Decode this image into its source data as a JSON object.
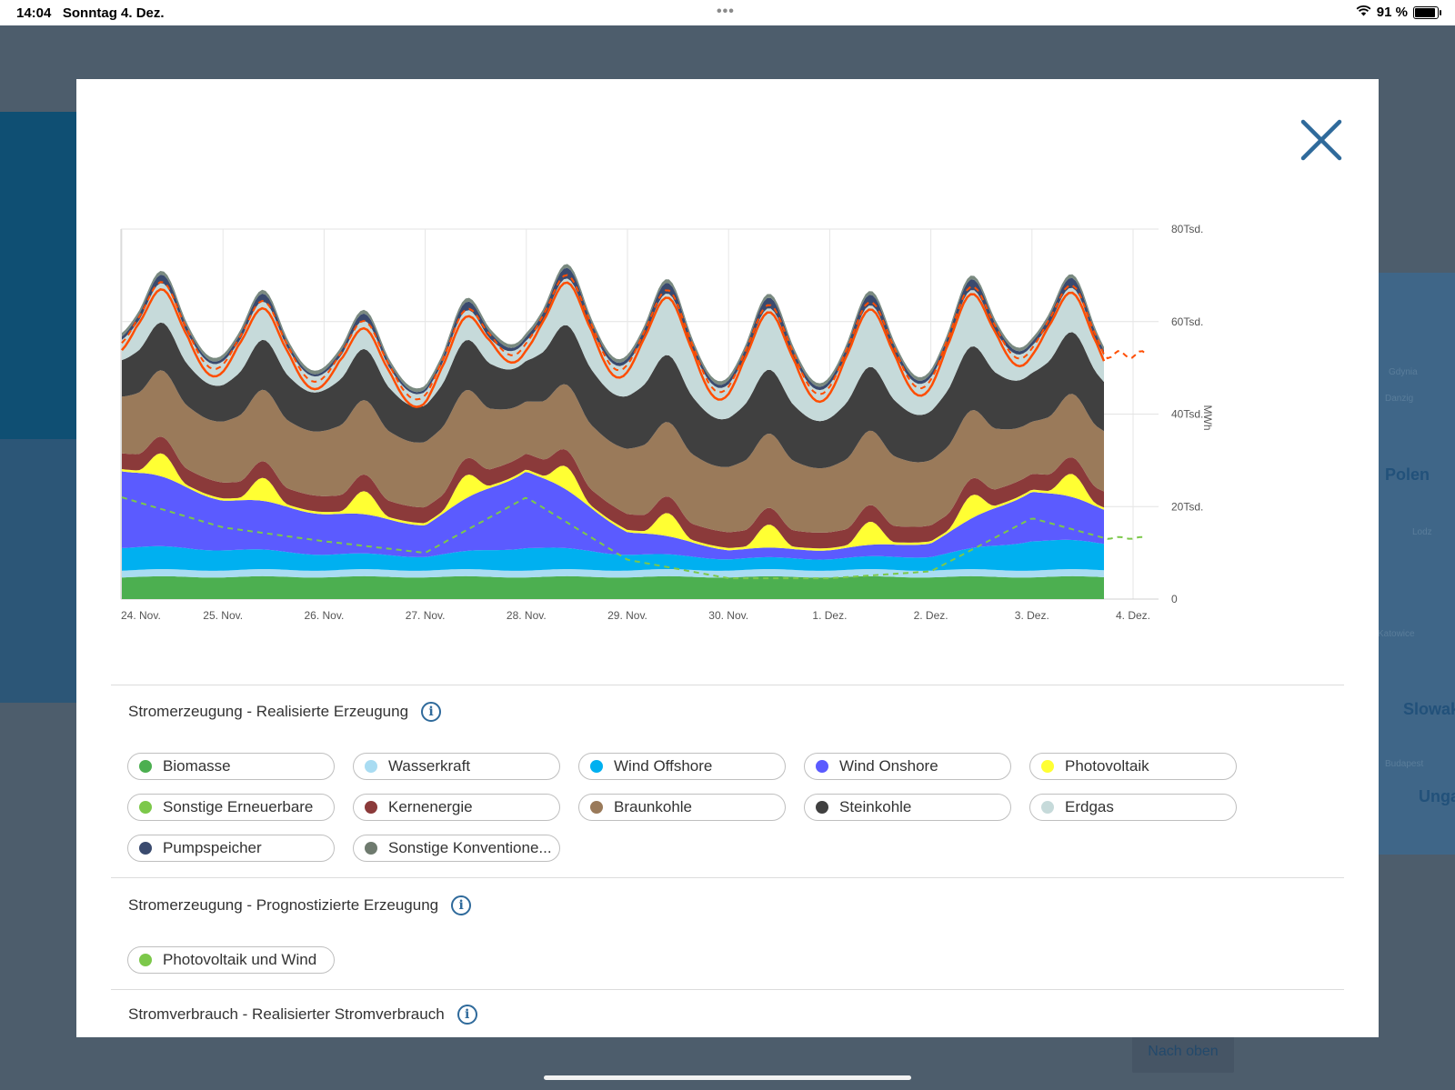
{
  "statusbar": {
    "time": "14:04",
    "date": "Sonntag 4. Dez.",
    "battery": "91 %"
  },
  "background": {
    "map_labels": [
      "Polen",
      "Slowak",
      "Unga"
    ],
    "map_small": [
      "Gdynia",
      "Danzig",
      "Lodz",
      "Katowice",
      "Budapest"
    ],
    "scroll_top": "Nach oben"
  },
  "chart_data": {
    "type": "area",
    "x": [
      "24. Nov.",
      "25. Nov.",
      "26. Nov.",
      "27. Nov.",
      "28. Nov.",
      "29. Nov.",
      "30. Nov.",
      "1. Dez.",
      "2. Dez.",
      "3. Dez.",
      "4. Dez."
    ],
    "yticks": [
      "0",
      "20Tsd.",
      "40Tsd.",
      "60Tsd.",
      "80Tsd."
    ],
    "ylabel": "MWh",
    "ylim": [
      0,
      80000
    ],
    "stacked": true,
    "series": [
      {
        "name": "Biomasse",
        "color": "#4caf50",
        "values": [
          4800,
          4800,
          4800,
          4800,
          4800,
          4800,
          4800,
          4800,
          4800,
          4800,
          4800
        ]
      },
      {
        "name": "Wasserkraft",
        "color": "#a9dcf2",
        "values": [
          1500,
          1500,
          1500,
          1500,
          1500,
          1500,
          1500,
          1500,
          1500,
          1500,
          1500
        ]
      },
      {
        "name": "Wind Offshore",
        "color": "#00b0f0",
        "values": [
          5000,
          4500,
          3500,
          3000,
          5000,
          3500,
          2500,
          2500,
          3000,
          6500,
          5500
        ]
      },
      {
        "name": "Wind Onshore",
        "color": "#5b5bff",
        "values": [
          17000,
          11000,
          9000,
          7000,
          17000,
          5000,
          2000,
          2000,
          3000,
          11000,
          6000
        ]
      },
      {
        "name": "Photovoltaik",
        "color": "#ffff33",
        "values": [
          500,
          500,
          500,
          500,
          500,
          500,
          500,
          500,
          500,
          500,
          500
        ]
      },
      {
        "name": "Kernenergie",
        "color": "#8b3a3a",
        "values": [
          3500,
          3500,
          3500,
          3500,
          3500,
          3500,
          3500,
          3500,
          3500,
          3500,
          3500
        ]
      },
      {
        "name": "Braunkohle",
        "color": "#9a7a5a",
        "values": [
          13000,
          14000,
          15000,
          15000,
          12000,
          15000,
          15000,
          15000,
          15000,
          12000,
          14000
        ]
      },
      {
        "name": "Steinkohle",
        "color": "#404040",
        "values": [
          9000,
          9000,
          10000,
          9000,
          10000,
          13000,
          12000,
          12000,
          12000,
          12000,
          11000
        ]
      },
      {
        "name": "Erdgas",
        "color": "#c6dada",
        "values": [
          6000,
          7000,
          5000,
          4000,
          6000,
          10000,
          10000,
          10000,
          10000,
          8000,
          6000
        ]
      },
      {
        "name": "Pumpspeicher",
        "color": "#3a4a6e",
        "values": [
          1200,
          1200,
          1000,
          1000,
          1500,
          1500,
          1500,
          1500,
          1500,
          1500,
          1200
        ]
      },
      {
        "name": "Sonstige Konventionelle",
        "color": "#7a8a80",
        "values": [
          800,
          800,
          800,
          800,
          800,
          800,
          800,
          800,
          800,
          800,
          800
        ]
      }
    ],
    "lines": [
      {
        "name": "Stromverbrauch realisiert",
        "color": "#ff4d00",
        "style": "solid"
      },
      {
        "name": "Stromverbrauch prognostiziert",
        "color": "#ff4d00",
        "style": "dashed"
      },
      {
        "name": "Photovoltaik und Wind",
        "color": "#7cc84a",
        "style": "dashed"
      }
    ]
  },
  "sections": [
    {
      "title": "Stromerzeugung - Realisierte Erzeugung",
      "items": [
        {
          "label": "Biomasse",
          "color": "#4caf50"
        },
        {
          "label": "Wasserkraft",
          "color": "#a9dcf2"
        },
        {
          "label": "Wind Offshore",
          "color": "#00b0f0"
        },
        {
          "label": "Wind Onshore",
          "color": "#5b5bff"
        },
        {
          "label": "Photovoltaik",
          "color": "#ffff33"
        },
        {
          "label": "Sonstige Erneuerbare",
          "color": "#7cc84a"
        },
        {
          "label": "Kernenergie",
          "color": "#8b3a3a"
        },
        {
          "label": "Braunkohle",
          "color": "#9a7a5a"
        },
        {
          "label": "Steinkohle",
          "color": "#404040"
        },
        {
          "label": "Erdgas",
          "color": "#c6dada"
        },
        {
          "label": "Pumpspeicher",
          "color": "#3a4a6e"
        },
        {
          "label": "Sonstige Konventione...",
          "color": "#6e7a6e"
        }
      ]
    },
    {
      "title": "Stromerzeugung - Prognostizierte Erzeugung",
      "items": [
        {
          "label": "Photovoltaik und Wind",
          "color": "#7cc84a"
        }
      ]
    },
    {
      "title": "Stromverbrauch - Realisierter Stromverbrauch",
      "items": []
    }
  ]
}
